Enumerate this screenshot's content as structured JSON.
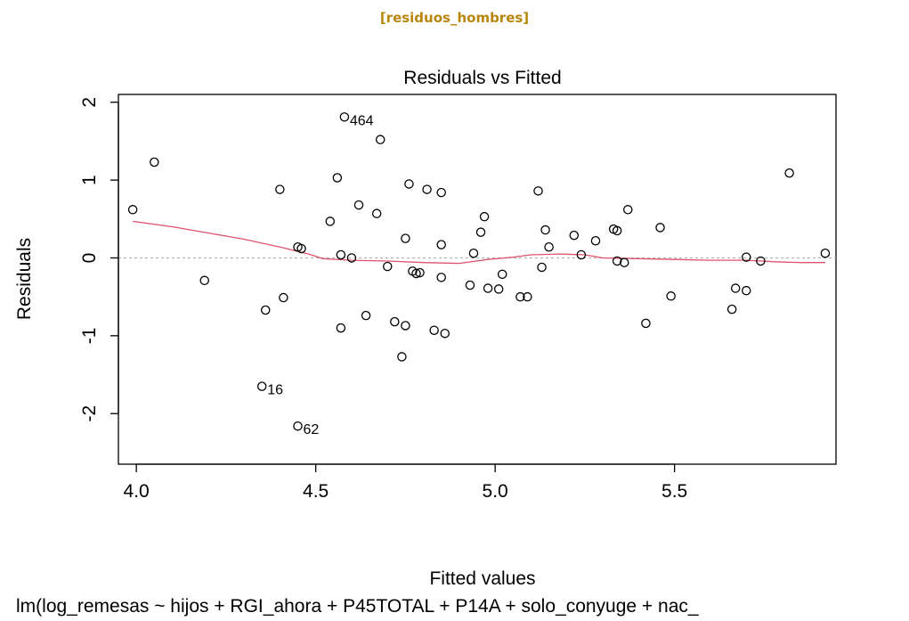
{
  "header": {
    "label": "[residuos_hombres]"
  },
  "colors": {
    "header": "#b8860b",
    "smoother": "#df536b",
    "reference_line": "#b3b3b3",
    "points": "#000000"
  },
  "chart_data": {
    "type": "scatter",
    "title": "Residuals vs Fitted",
    "xlabel": "Fitted values",
    "ylabel": "Residuals",
    "caption": "lm(log_remesas ~ hijos + RGI_ahora + P45TOTAL + P14A + solo_conyuge + nac_",
    "xlim": [
      3.95,
      5.95
    ],
    "ylim": [
      -2.65,
      2.1
    ],
    "xticks": [
      4.0,
      4.5,
      5.0,
      5.5
    ],
    "xtick_labels": [
      "4.0",
      "4.5",
      "5.0",
      "5.5"
    ],
    "yticks": [
      -2,
      -1,
      0,
      1,
      2
    ],
    "ytick_labels": [
      "-2",
      "-1",
      "0",
      "1",
      "2"
    ],
    "grid": false,
    "reference_line_y": 0,
    "points": [
      {
        "x": 3.99,
        "y": 0.62
      },
      {
        "x": 4.05,
        "y": 1.23
      },
      {
        "x": 4.19,
        "y": -0.29
      },
      {
        "x": 4.35,
        "y": -1.65
      },
      {
        "x": 4.36,
        "y": -0.67
      },
      {
        "x": 4.4,
        "y": 0.88
      },
      {
        "x": 4.41,
        "y": -0.51
      },
      {
        "x": 4.45,
        "y": 0.14
      },
      {
        "x": 4.45,
        "y": -2.16
      },
      {
        "x": 4.46,
        "y": 0.12
      },
      {
        "x": 4.54,
        "y": 0.47
      },
      {
        "x": 4.56,
        "y": 1.03
      },
      {
        "x": 4.57,
        "y": 0.04
      },
      {
        "x": 4.57,
        "y": -0.9
      },
      {
        "x": 4.58,
        "y": 1.81
      },
      {
        "x": 4.6,
        "y": 0.0
      },
      {
        "x": 4.62,
        "y": 0.68
      },
      {
        "x": 4.64,
        "y": -0.74
      },
      {
        "x": 4.67,
        "y": 0.57
      },
      {
        "x": 4.68,
        "y": 1.52
      },
      {
        "x": 4.7,
        "y": -0.11
      },
      {
        "x": 4.72,
        "y": -0.82
      },
      {
        "x": 4.74,
        "y": -1.27
      },
      {
        "x": 4.75,
        "y": 0.25
      },
      {
        "x": 4.75,
        "y": -0.87
      },
      {
        "x": 4.76,
        "y": 0.95
      },
      {
        "x": 4.77,
        "y": -0.17
      },
      {
        "x": 4.78,
        "y": -0.2
      },
      {
        "x": 4.79,
        "y": -0.19
      },
      {
        "x": 4.81,
        "y": 0.88
      },
      {
        "x": 4.83,
        "y": -0.93
      },
      {
        "x": 4.85,
        "y": 0.17
      },
      {
        "x": 4.85,
        "y": -0.25
      },
      {
        "x": 4.85,
        "y": 0.84
      },
      {
        "x": 4.86,
        "y": -0.97
      },
      {
        "x": 4.93,
        "y": -0.35
      },
      {
        "x": 4.94,
        "y": 0.06
      },
      {
        "x": 4.96,
        "y": 0.33
      },
      {
        "x": 4.97,
        "y": 0.53
      },
      {
        "x": 4.98,
        "y": -0.39
      },
      {
        "x": 5.01,
        "y": -0.4
      },
      {
        "x": 5.02,
        "y": -0.21
      },
      {
        "x": 5.07,
        "y": -0.5
      },
      {
        "x": 5.09,
        "y": -0.5
      },
      {
        "x": 5.12,
        "y": 0.86
      },
      {
        "x": 5.13,
        "y": -0.12
      },
      {
        "x": 5.14,
        "y": 0.36
      },
      {
        "x": 5.15,
        "y": 0.14
      },
      {
        "x": 5.22,
        "y": 0.29
      },
      {
        "x": 5.24,
        "y": 0.04
      },
      {
        "x": 5.28,
        "y": 0.22
      },
      {
        "x": 5.33,
        "y": 0.37
      },
      {
        "x": 5.34,
        "y": -0.04
      },
      {
        "x": 5.34,
        "y": 0.35
      },
      {
        "x": 5.36,
        "y": -0.06
      },
      {
        "x": 5.37,
        "y": 0.62
      },
      {
        "x": 5.42,
        "y": -0.84
      },
      {
        "x": 5.46,
        "y": 0.39
      },
      {
        "x": 5.49,
        "y": -0.49
      },
      {
        "x": 5.66,
        "y": -0.66
      },
      {
        "x": 5.67,
        "y": -0.39
      },
      {
        "x": 5.7,
        "y": -0.42
      },
      {
        "x": 5.7,
        "y": 0.01
      },
      {
        "x": 5.74,
        "y": -0.04
      },
      {
        "x": 5.82,
        "y": 1.09
      },
      {
        "x": 5.92,
        "y": 0.06
      }
    ],
    "point_labels": [
      {
        "x": 4.58,
        "y": 1.81,
        "label": "464"
      },
      {
        "x": 4.35,
        "y": -1.65,
        "label": "16"
      },
      {
        "x": 4.45,
        "y": -2.16,
        "label": "62"
      }
    ],
    "smoother": [
      {
        "x": 3.99,
        "y": 0.47
      },
      {
        "x": 4.1,
        "y": 0.4
      },
      {
        "x": 4.2,
        "y": 0.32
      },
      {
        "x": 4.3,
        "y": 0.24
      },
      {
        "x": 4.4,
        "y": 0.14
      },
      {
        "x": 4.48,
        "y": 0.05
      },
      {
        "x": 4.52,
        "y": -0.01
      },
      {
        "x": 4.6,
        "y": -0.03
      },
      {
        "x": 4.7,
        "y": -0.04
      },
      {
        "x": 4.8,
        "y": -0.06
      },
      {
        "x": 4.9,
        "y": -0.07
      },
      {
        "x": 4.98,
        "y": -0.02
      },
      {
        "x": 5.05,
        "y": 0.01
      },
      {
        "x": 5.1,
        "y": 0.04
      },
      {
        "x": 5.18,
        "y": 0.05
      },
      {
        "x": 5.25,
        "y": 0.04
      },
      {
        "x": 5.3,
        "y": 0.0
      },
      {
        "x": 5.4,
        "y": -0.01
      },
      {
        "x": 5.5,
        "y": -0.02
      },
      {
        "x": 5.6,
        "y": -0.03
      },
      {
        "x": 5.7,
        "y": -0.03
      },
      {
        "x": 5.78,
        "y": -0.05
      },
      {
        "x": 5.85,
        "y": -0.06
      },
      {
        "x": 5.92,
        "y": -0.06
      }
    ]
  }
}
